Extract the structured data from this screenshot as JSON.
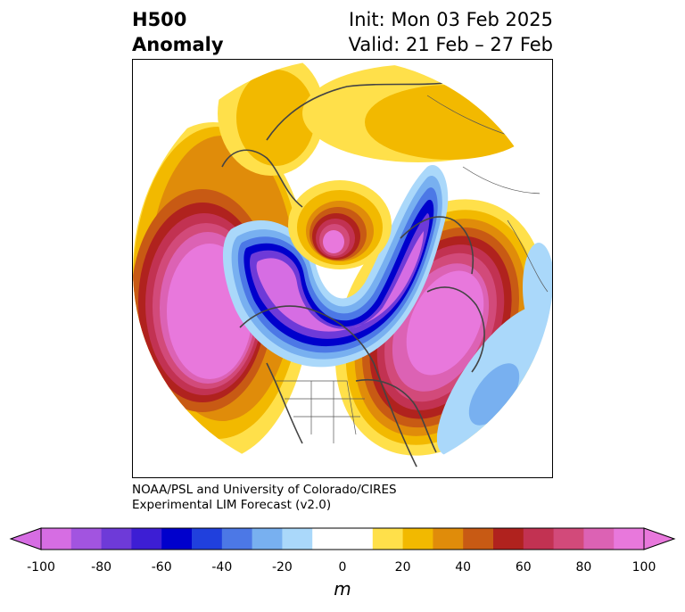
{
  "title": {
    "left_line1": "H500",
    "left_line2": "Anomaly",
    "right_line1": "Init: Mon 03 Feb 2025",
    "right_line2": "Valid: 21 Feb – 27 Feb"
  },
  "credit": {
    "line1": "NOAA/PSL and University of Colorado/CIRES",
    "line2": "Experimental LIM Forecast (v2.0)"
  },
  "colorbar": {
    "unit": "m",
    "levels": [
      -100,
      -90,
      -80,
      -70,
      -60,
      -50,
      -40,
      -30,
      -20,
      -10,
      10,
      20,
      30,
      40,
      50,
      60,
      70,
      80,
      90,
      100
    ],
    "colors": [
      "#d66de3",
      "#a254e0",
      "#6e3ad8",
      "#3d1ed4",
      "#0000cc",
      "#2040dd",
      "#4c78e6",
      "#78b0f0",
      "#aad8fa",
      "#ffffff",
      "#ffe04a",
      "#f2b900",
      "#e08c0a",
      "#c85a14",
      "#b0221e",
      "#c23252",
      "#d24a7a",
      "#dc62b4",
      "#e878dc"
    ],
    "under_color": "#d66de3",
    "over_color": "#e878dc",
    "tick_labels": [
      "-100",
      "-80",
      "-60",
      "-40",
      "-20",
      "0",
      "20",
      "40",
      "60",
      "80",
      "100"
    ]
  },
  "map": {
    "projection": "north-polar-stereographic",
    "variable": "500 hPa geopotential height anomaly",
    "features": [
      "coastlines",
      "country-borders",
      "state-borders"
    ]
  }
}
